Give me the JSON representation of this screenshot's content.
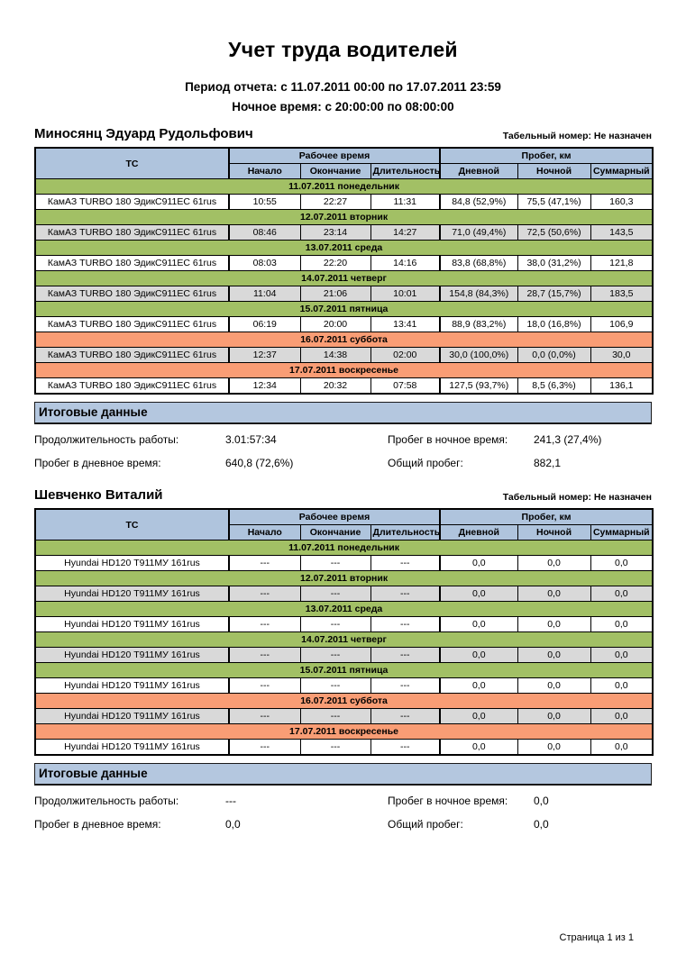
{
  "page": {
    "title": "Учет труда водителей",
    "period_line": "Период отчета: с 11.07.2011 00:00 по 17.07.2011 23:59",
    "night_line": "Ночное время: с 20:00:00 по 08:00:00",
    "footer": "Страница 1 из 1"
  },
  "colors": {
    "header_blue": "#AFC4DD",
    "weekday_green": "#A2C065",
    "weekend_orange": "#F99D75",
    "alt_row_gray": "#D9D9D9",
    "summary_bar_blue": "#B4C7DF"
  },
  "table_headers": {
    "vehicle": "ТС",
    "work_time_group": "Рабочее время",
    "mileage_group": "Пробег, км",
    "start": "Начало",
    "end": "Окончание",
    "duration": "Длительность",
    "day_mileage": "Дневной",
    "night_mileage": "Ночной",
    "total_mileage": "Суммарный"
  },
  "summary_labels": {
    "title": "Итоговые данные",
    "work_duration": "Продолжительность работы:",
    "day_mileage": "Пробег в дневное время:",
    "night_mileage": "Пробег в ночное время:",
    "total_mileage": "Общий пробег:"
  },
  "drivers": [
    {
      "name": "Миносянц Эдуард Рудольфович",
      "personnel_number": "Табельный номер: Не назначен",
      "days": [
        {
          "date_label": "11.07.2011 понедельник",
          "weekend": false,
          "vehicle": "КамАЗ TURBO 180 ЭдикС911ЕС 61rus",
          "start": "10:55",
          "end": "22:27",
          "duration": "11:31",
          "day": "84,8 (52,9%)",
          "night": "75,5 (47,1%)",
          "total": "160,3"
        },
        {
          "date_label": "12.07.2011 вторник",
          "weekend": false,
          "vehicle": "КамАЗ TURBO 180 ЭдикС911ЕС 61rus",
          "start": "08:46",
          "end": "23:14",
          "duration": "14:27",
          "day": "71,0 (49,4%)",
          "night": "72,5 (50,6%)",
          "total": "143,5"
        },
        {
          "date_label": "13.07.2011 среда",
          "weekend": false,
          "vehicle": "КамАЗ TURBO 180 ЭдикС911ЕС 61rus",
          "start": "08:03",
          "end": "22:20",
          "duration": "14:16",
          "day": "83,8 (68,8%)",
          "night": "38,0 (31,2%)",
          "total": "121,8"
        },
        {
          "date_label": "14.07.2011 четверг",
          "weekend": false,
          "vehicle": "КамАЗ TURBO 180 ЭдикС911ЕС 61rus",
          "start": "11:04",
          "end": "21:06",
          "duration": "10:01",
          "day": "154,8 (84,3%)",
          "night": "28,7 (15,7%)",
          "total": "183,5"
        },
        {
          "date_label": "15.07.2011 пятница",
          "weekend": false,
          "vehicle": "КамАЗ TURBO 180 ЭдикС911ЕС 61rus",
          "start": "06:19",
          "end": "20:00",
          "duration": "13:41",
          "day": "88,9 (83,2%)",
          "night": "18,0 (16,8%)",
          "total": "106,9"
        },
        {
          "date_label": "16.07.2011 суббота",
          "weekend": true,
          "vehicle": "КамАЗ TURBO 180 ЭдикС911ЕС 61rus",
          "start": "12:37",
          "end": "14:38",
          "duration": "02:00",
          "day": "30,0 (100,0%)",
          "night": "0,0 (0,0%)",
          "total": "30,0"
        },
        {
          "date_label": "17.07.2011 воскресенье",
          "weekend": true,
          "vehicle": "КамАЗ TURBO 180 ЭдикС911ЕС 61rus",
          "start": "12:34",
          "end": "20:32",
          "duration": "07:58",
          "day": "127,5 (93,7%)",
          "night": "8,5 (6,3%)",
          "total": "136,1"
        }
      ],
      "summary": {
        "work_duration": "3.01:57:34",
        "day_mileage": "640,8 (72,6%)",
        "night_mileage": "241,3 (27,4%)",
        "total_mileage": "882,1"
      }
    },
    {
      "name": "Шевченко Виталий",
      "personnel_number": "Табельный номер: Не назначен",
      "days": [
        {
          "date_label": "11.07.2011 понедельник",
          "weekend": false,
          "vehicle": "Hyundai HD120 Т911МУ 161rus",
          "start": "---",
          "end": "---",
          "duration": "---",
          "day": "0,0",
          "night": "0,0",
          "total": "0,0"
        },
        {
          "date_label": "12.07.2011 вторник",
          "weekend": false,
          "vehicle": "Hyundai HD120 Т911МУ 161rus",
          "start": "---",
          "end": "---",
          "duration": "---",
          "day": "0,0",
          "night": "0,0",
          "total": "0,0"
        },
        {
          "date_label": "13.07.2011 среда",
          "weekend": false,
          "vehicle": "Hyundai HD120 Т911МУ 161rus",
          "start": "---",
          "end": "---",
          "duration": "---",
          "day": "0,0",
          "night": "0,0",
          "total": "0,0"
        },
        {
          "date_label": "14.07.2011 четверг",
          "weekend": false,
          "vehicle": "Hyundai HD120 Т911МУ 161rus",
          "start": "---",
          "end": "---",
          "duration": "---",
          "day": "0,0",
          "night": "0,0",
          "total": "0,0"
        },
        {
          "date_label": "15.07.2011 пятница",
          "weekend": false,
          "vehicle": "Hyundai HD120 Т911МУ 161rus",
          "start": "---",
          "end": "---",
          "duration": "---",
          "day": "0,0",
          "night": "0,0",
          "total": "0,0"
        },
        {
          "date_label": "16.07.2011 суббота",
          "weekend": true,
          "vehicle": "Hyundai HD120 Т911МУ 161rus",
          "start": "---",
          "end": "---",
          "duration": "---",
          "day": "0,0",
          "night": "0,0",
          "total": "0,0"
        },
        {
          "date_label": "17.07.2011 воскресенье",
          "weekend": true,
          "vehicle": "Hyundai HD120 Т911МУ 161rus",
          "start": "---",
          "end": "---",
          "duration": "---",
          "day": "0,0",
          "night": "0,0",
          "total": "0,0"
        }
      ],
      "summary": {
        "work_duration": "---",
        "day_mileage": "0,0",
        "night_mileage": "0,0",
        "total_mileage": "0,0"
      }
    }
  ]
}
